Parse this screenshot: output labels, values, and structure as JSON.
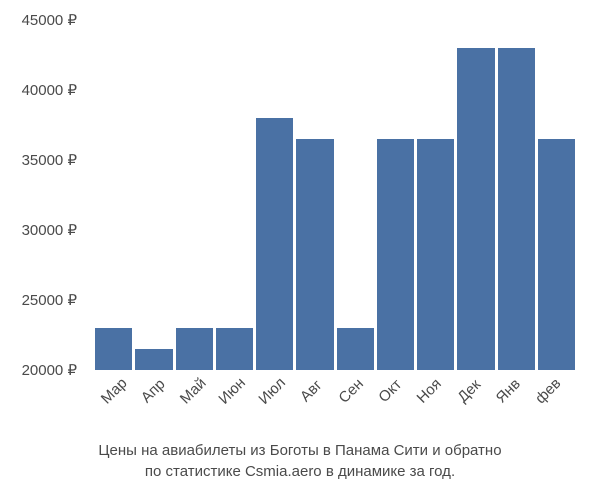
{
  "chart": {
    "type": "bar",
    "categories": [
      "Мар",
      "Апр",
      "Май",
      "Июн",
      "Июл",
      "Авг",
      "Сен",
      "Окт",
      "Ноя",
      "Дек",
      "Янв",
      "фев"
    ],
    "values": [
      23000,
      21500,
      23000,
      23000,
      38000,
      36500,
      23000,
      36500,
      36500,
      43000,
      43000,
      36500
    ],
    "bar_color": "#4a71a4",
    "background_color": "#ffffff",
    "text_color": "#4a4a4a",
    "ylim": [
      20000,
      45000
    ],
    "ytick_step": 5000,
    "ytick_labels": [
      "20000 ₽",
      "25000 ₽",
      "30000 ₽",
      "35000 ₽",
      "40000 ₽",
      "45000 ₽"
    ],
    "ytick_values": [
      20000,
      25000,
      30000,
      35000,
      40000,
      45000
    ],
    "label_fontsize": 15,
    "caption_fontsize": 15,
    "bar_gap": 3,
    "x_label_rotation": -45
  },
  "caption": {
    "line1": "Цены на авиабилеты из Боготы в Панама Сити и обратно",
    "line2": "по статистике Csmia.aero в динамике за год."
  }
}
